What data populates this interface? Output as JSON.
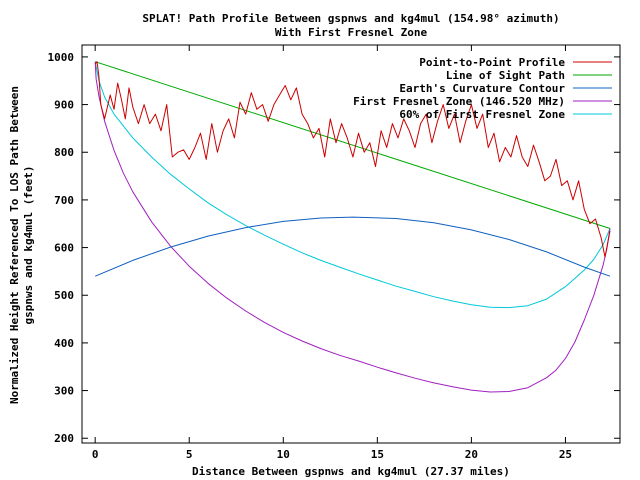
{
  "chart_data": {
    "type": "line",
    "title_line1": "SPLAT! Path Profile Between gspnws and kg4mul (154.98° azimuth)",
    "title_line2": "With First Fresnel Zone",
    "xlabel": "Distance Between gspnws and kg4mul (27.37 miles)",
    "ylabel_line1": "Normalized Height Referenced To LOS Path Between",
    "ylabel_line2": "gspnws and kg4mul (feet)",
    "xlim": [
      -0.7,
      27.9
    ],
    "ylim": [
      190,
      1025
    ],
    "x_ticks": [
      0,
      5,
      10,
      15,
      20,
      25
    ],
    "y_ticks": [
      200,
      300,
      400,
      500,
      600,
      700,
      800,
      900,
      1000
    ],
    "grid": false,
    "legend_position": "top-right",
    "colors": {
      "profile": "#cc0000",
      "los": "#00aa00",
      "curvature": "#1060c0",
      "fresnel": "#a020c0",
      "fresnel60": "#00c8d8"
    },
    "series": [
      {
        "key": "profile",
        "name": "Point-to-Point Profile",
        "x": [
          0,
          0.1,
          0.2,
          0.3,
          0.5,
          0.8,
          1.0,
          1.2,
          1.4,
          1.6,
          1.8,
          2.0,
          2.3,
          2.6,
          2.9,
          3.2,
          3.5,
          3.8,
          4.1,
          4.4,
          4.7,
          5.0,
          5.3,
          5.6,
          5.9,
          6.2,
          6.5,
          6.8,
          7.1,
          7.4,
          7.7,
          8.0,
          8.3,
          8.6,
          8.9,
          9.2,
          9.5,
          9.8,
          10.1,
          10.4,
          10.7,
          11.0,
          11.3,
          11.6,
          11.9,
          12.2,
          12.5,
          12.8,
          13.1,
          13.4,
          13.7,
          14.0,
          14.3,
          14.6,
          14.9,
          15.2,
          15.5,
          15.8,
          16.1,
          16.4,
          16.7,
          17.0,
          17.3,
          17.6,
          17.9,
          18.2,
          18.5,
          18.8,
          19.1,
          19.4,
          19.7,
          20.0,
          20.3,
          20.6,
          20.9,
          21.2,
          21.5,
          21.8,
          22.1,
          22.4,
          22.7,
          23.0,
          23.3,
          23.6,
          23.9,
          24.2,
          24.5,
          24.8,
          25.1,
          25.4,
          25.7,
          26.0,
          26.3,
          26.6,
          26.9,
          27.1,
          27.37
        ],
        "y": [
          985,
          990,
          960,
          900,
          870,
          920,
          890,
          945,
          910,
          870,
          935,
          895,
          860,
          900,
          860,
          880,
          845,
          900,
          790,
          800,
          805,
          785,
          810,
          840,
          785,
          860,
          800,
          845,
          870,
          830,
          905,
          880,
          925,
          890,
          900,
          865,
          900,
          920,
          940,
          910,
          935,
          880,
          860,
          830,
          850,
          790,
          870,
          820,
          860,
          830,
          790,
          840,
          800,
          820,
          770,
          845,
          810,
          860,
          830,
          870,
          845,
          810,
          860,
          880,
          820,
          865,
          900,
          850,
          880,
          820,
          865,
          900,
          850,
          880,
          810,
          840,
          780,
          810,
          790,
          835,
          790,
          770,
          815,
          780,
          740,
          750,
          785,
          730,
          740,
          700,
          740,
          680,
          650,
          660,
          620,
          580,
          635
        ]
      },
      {
        "key": "los",
        "name": "Line of Sight Path",
        "x": [
          0,
          27.37
        ],
        "y": [
          990,
          640
        ]
      },
      {
        "key": "curvature",
        "name": "Earth's Curvature Contour",
        "x": [
          0,
          2,
          4,
          6,
          8,
          10,
          12,
          13.7,
          16,
          18,
          20,
          22,
          24,
          26,
          27.37
        ],
        "y": [
          540,
          573,
          601,
          624,
          642,
          655,
          662,
          664,
          661,
          652,
          637,
          617,
          591,
          559,
          540
        ]
      },
      {
        "key": "fresnel",
        "name": "First Fresnel Zone (146.520 MHz)",
        "x": [
          0,
          0.05,
          0.2,
          0.5,
          1,
          1.5,
          2,
          3,
          4,
          5,
          6,
          7,
          8,
          9,
          10,
          11,
          12,
          13,
          14,
          15,
          16,
          17,
          18,
          19,
          20,
          21,
          22,
          23,
          24,
          24.5,
          25,
          25.5,
          26,
          26.5,
          27,
          27.2,
          27.37
        ],
        "y": [
          990,
          954,
          918,
          865,
          804,
          756,
          717,
          654,
          603,
          561,
          525,
          494,
          467,
          443,
          422,
          404,
          388,
          374,
          362,
          349,
          337,
          326,
          316,
          308,
          301,
          297,
          298,
          306,
          327,
          343,
          367,
          402,
          448,
          499,
          563,
          597,
          640
        ]
      },
      {
        "key": "fresnel60",
        "name": "60% of First Fresnel Zone",
        "x": [
          0,
          0.2,
          0.5,
          1,
          2,
          3,
          4,
          5,
          6,
          7,
          8,
          9,
          10,
          11,
          12,
          13,
          14,
          15,
          16,
          17,
          18,
          19,
          20,
          21,
          22,
          23,
          24,
          25,
          26,
          26.5,
          27,
          27.37
        ],
        "y": [
          990,
          950,
          916,
          880,
          830,
          790,
          754,
          723,
          694,
          669,
          646,
          626,
          607,
          589,
          573,
          559,
          545,
          532,
          519,
          508,
          497,
          488,
          480,
          475,
          474,
          478,
          492,
          518,
          553,
          575,
          606,
          640
        ]
      }
    ]
  }
}
